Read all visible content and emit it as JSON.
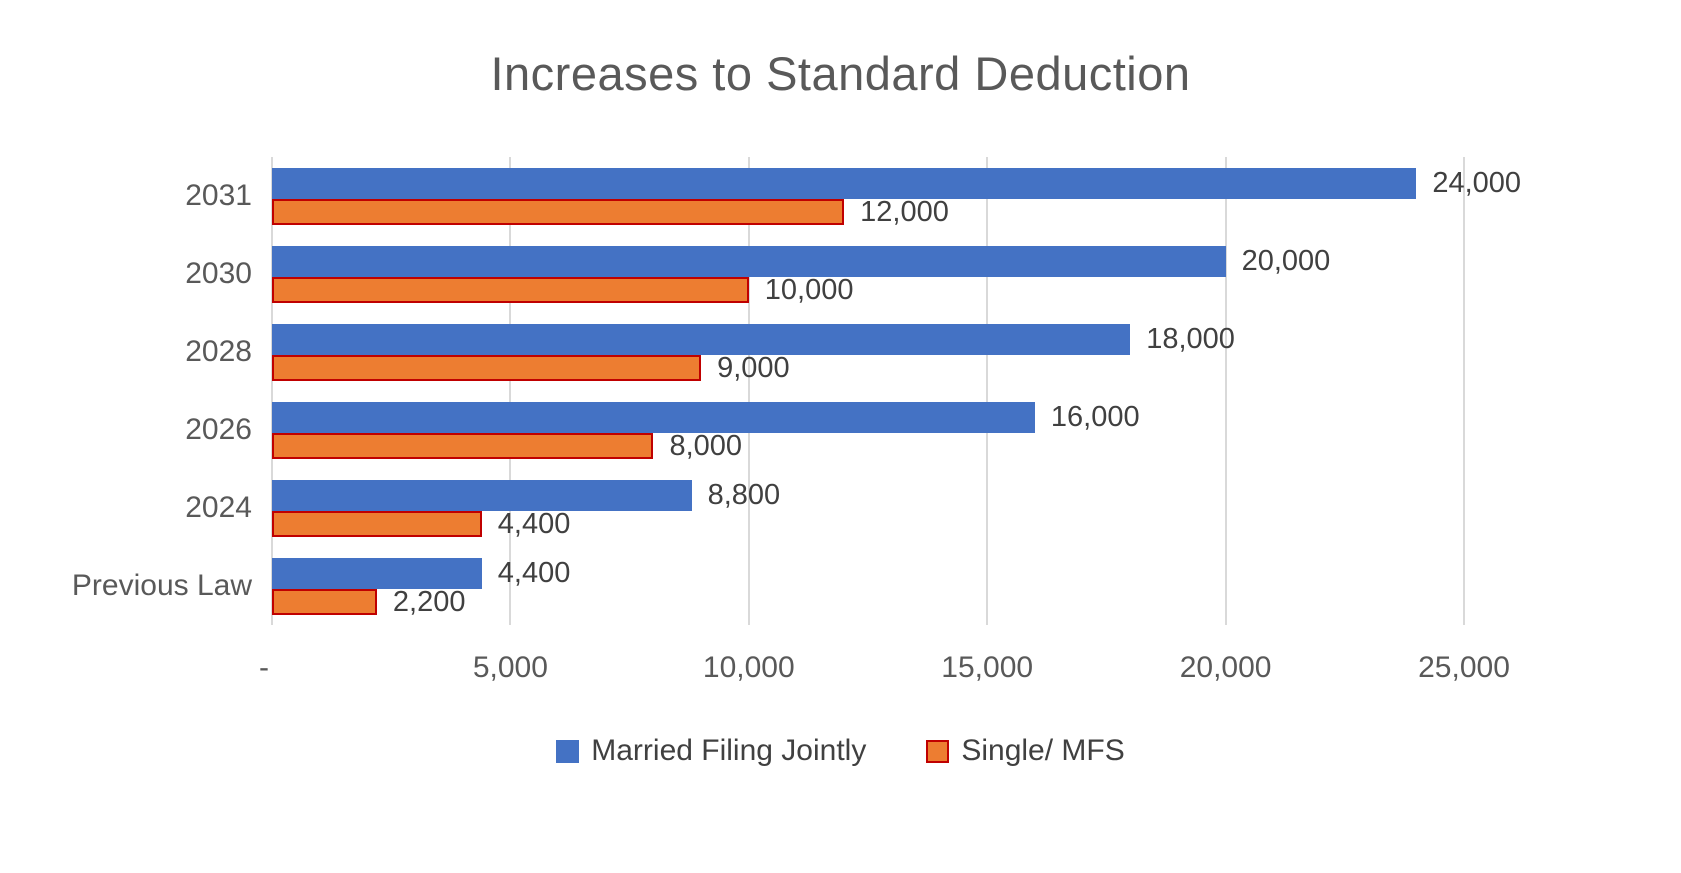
{
  "chart_data": {
    "type": "bar",
    "orientation": "horizontal",
    "title": "Increases to Standard Deduction",
    "categories": [
      "2031",
      "2030",
      "2028",
      "2026",
      "2024",
      "Previous Law"
    ],
    "series": [
      {
        "name": "Married Filing Jointly",
        "color": "#4472C4",
        "values": [
          24000,
          20000,
          18000,
          16000,
          8800,
          4400
        ],
        "labels": [
          "24,000",
          "20,000",
          "18,000",
          "16,000",
          "8,800",
          "4,400"
        ]
      },
      {
        "name": "Single/ MFS",
        "color": "#ED7D31",
        "border_color": "#C00000",
        "values": [
          12000,
          10000,
          9000,
          8000,
          4400,
          2200
        ],
        "labels": [
          "12,000",
          "10,000",
          "9,000",
          "8,000",
          "4,400",
          "2,200"
        ]
      }
    ],
    "x_axis": {
      "min": 0,
      "max": 25000,
      "tick_interval": 5000,
      "tick_labels": [
        "-",
        "5,000",
        "10,000",
        "15,000",
        "20,000",
        "25,000"
      ]
    },
    "grid": true,
    "legend_position": "bottom",
    "colors": {
      "gridline": "#D9D9D9",
      "title_text": "#595959",
      "axis_text": "#595959",
      "data_label_text": "#404040"
    }
  }
}
